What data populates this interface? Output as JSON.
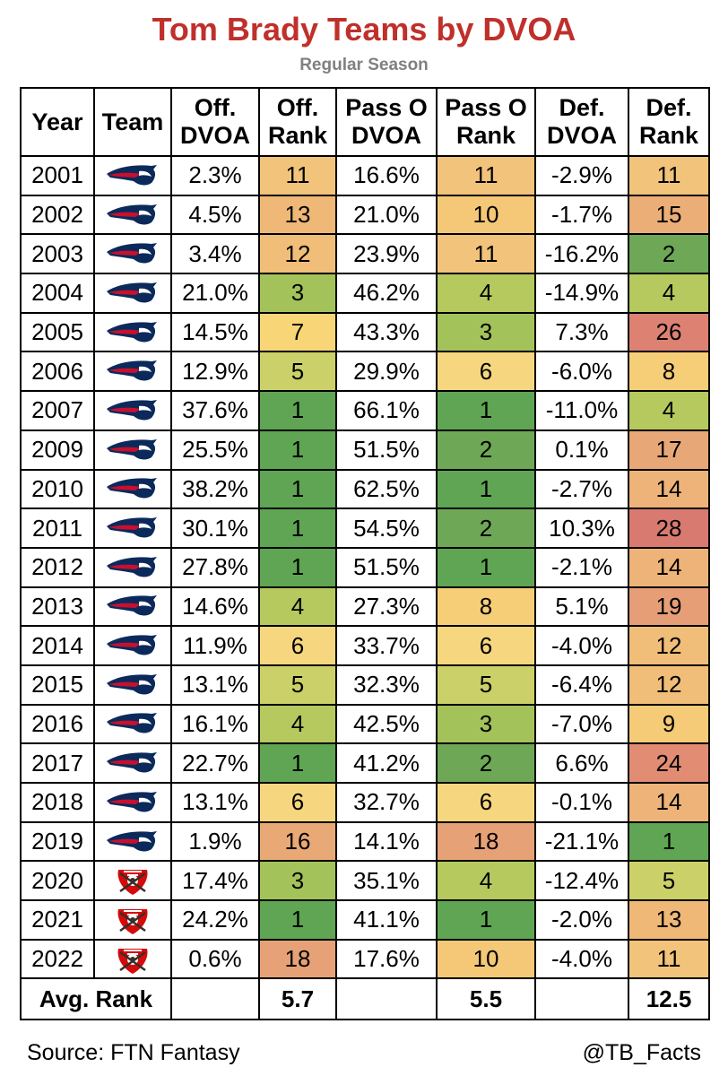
{
  "title": "Tom Brady Teams by DVOA",
  "subtitle": "Regular Season",
  "headers": {
    "year": "Year",
    "team": "Team",
    "off_dvoa": [
      "Off.",
      "DVOA"
    ],
    "off_rank": [
      "Off.",
      "Rank"
    ],
    "pass_dvoa": [
      "Pass O",
      "DVOA"
    ],
    "pass_rank": [
      "Pass O",
      "Rank"
    ],
    "def_dvoa": [
      "Def.",
      "DVOA"
    ],
    "def_rank": [
      "Def.",
      "Rank"
    ]
  },
  "rank_colors": {
    "1": "#5fa553",
    "2": "#6ea856",
    "3": "#a3c35a",
    "4": "#b5c95e",
    "5": "#cbd168",
    "6": "#f6d77f",
    "7": "#f8d677",
    "8": "#f6ce78",
    "9": "#f5cb77",
    "10": "#f4c877",
    "11": "#f2c37a",
    "12": "#f0be78",
    "13": "#efb877",
    "14": "#edb378",
    "15": "#ebae77",
    "16": "#e9a976",
    "17": "#e8a777",
    "18": "#e6a276",
    "19": "#e59e76",
    "24": "#e28c74",
    "26": "#dd8272",
    "28": "#d97a70"
  },
  "chart_data": {
    "type": "table",
    "title": "Tom Brady Teams by DVOA",
    "subtitle": "Regular Season",
    "columns": [
      "Year",
      "Team",
      "Off. DVOA",
      "Off. Rank",
      "Pass O DVOA",
      "Pass O Rank",
      "Def. DVOA",
      "Def. Rank"
    ],
    "rows": [
      {
        "year": "2001",
        "team": "patriots",
        "off_dvoa": "2.3%",
        "off_rank": "11",
        "pass_dvoa": "16.6%",
        "pass_rank": "11",
        "def_dvoa": "-2.9%",
        "def_rank": "11"
      },
      {
        "year": "2002",
        "team": "patriots",
        "off_dvoa": "4.5%",
        "off_rank": "13",
        "pass_dvoa": "21.0%",
        "pass_rank": "10",
        "def_dvoa": "-1.7%",
        "def_rank": "15"
      },
      {
        "year": "2003",
        "team": "patriots",
        "off_dvoa": "3.4%",
        "off_rank": "12",
        "pass_dvoa": "23.9%",
        "pass_rank": "11",
        "def_dvoa": "-16.2%",
        "def_rank": "2"
      },
      {
        "year": "2004",
        "team": "patriots",
        "off_dvoa": "21.0%",
        "off_rank": "3",
        "pass_dvoa": "46.2%",
        "pass_rank": "4",
        "def_dvoa": "-14.9%",
        "def_rank": "4"
      },
      {
        "year": "2005",
        "team": "patriots",
        "off_dvoa": "14.5%",
        "off_rank": "7",
        "pass_dvoa": "43.3%",
        "pass_rank": "3",
        "def_dvoa": "7.3%",
        "def_rank": "26"
      },
      {
        "year": "2006",
        "team": "patriots",
        "off_dvoa": "12.9%",
        "off_rank": "5",
        "pass_dvoa": "29.9%",
        "pass_rank": "6",
        "def_dvoa": "-6.0%",
        "def_rank": "8"
      },
      {
        "year": "2007",
        "team": "patriots",
        "off_dvoa": "37.6%",
        "off_rank": "1",
        "pass_dvoa": "66.1%",
        "pass_rank": "1",
        "def_dvoa": "-11.0%",
        "def_rank": "4"
      },
      {
        "year": "2009",
        "team": "patriots",
        "off_dvoa": "25.5%",
        "off_rank": "1",
        "pass_dvoa": "51.5%",
        "pass_rank": "2",
        "def_dvoa": "0.1%",
        "def_rank": "17"
      },
      {
        "year": "2010",
        "team": "patriots",
        "off_dvoa": "38.2%",
        "off_rank": "1",
        "pass_dvoa": "62.5%",
        "pass_rank": "1",
        "def_dvoa": "-2.7%",
        "def_rank": "14"
      },
      {
        "year": "2011",
        "team": "patriots",
        "off_dvoa": "30.1%",
        "off_rank": "1",
        "pass_dvoa": "54.5%",
        "pass_rank": "2",
        "def_dvoa": "10.3%",
        "def_rank": "28"
      },
      {
        "year": "2012",
        "team": "patriots",
        "off_dvoa": "27.8%",
        "off_rank": "1",
        "pass_dvoa": "51.5%",
        "pass_rank": "1",
        "def_dvoa": "-2.1%",
        "def_rank": "14"
      },
      {
        "year": "2013",
        "team": "patriots",
        "off_dvoa": "14.6%",
        "off_rank": "4",
        "pass_dvoa": "27.3%",
        "pass_rank": "8",
        "def_dvoa": "5.1%",
        "def_rank": "19"
      },
      {
        "year": "2014",
        "team": "patriots",
        "off_dvoa": "11.9%",
        "off_rank": "6",
        "pass_dvoa": "33.7%",
        "pass_rank": "6",
        "def_dvoa": "-4.0%",
        "def_rank": "12"
      },
      {
        "year": "2015",
        "team": "patriots",
        "off_dvoa": "13.1%",
        "off_rank": "5",
        "pass_dvoa": "32.3%",
        "pass_rank": "5",
        "def_dvoa": "-6.4%",
        "def_rank": "12"
      },
      {
        "year": "2016",
        "team": "patriots",
        "off_dvoa": "16.1%",
        "off_rank": "4",
        "pass_dvoa": "42.5%",
        "pass_rank": "3",
        "def_dvoa": "-7.0%",
        "def_rank": "9"
      },
      {
        "year": "2017",
        "team": "patriots",
        "off_dvoa": "22.7%",
        "off_rank": "1",
        "pass_dvoa": "41.2%",
        "pass_rank": "2",
        "def_dvoa": "6.6%",
        "def_rank": "24"
      },
      {
        "year": "2018",
        "team": "patriots",
        "off_dvoa": "13.1%",
        "off_rank": "6",
        "pass_dvoa": "32.7%",
        "pass_rank": "6",
        "def_dvoa": "-0.1%",
        "def_rank": "14"
      },
      {
        "year": "2019",
        "team": "patriots",
        "off_dvoa": "1.9%",
        "off_rank": "16",
        "pass_dvoa": "14.1%",
        "pass_rank": "18",
        "def_dvoa": "-21.1%",
        "def_rank": "1"
      },
      {
        "year": "2020",
        "team": "buccaneers",
        "off_dvoa": "17.4%",
        "off_rank": "3",
        "pass_dvoa": "35.1%",
        "pass_rank": "4",
        "def_dvoa": "-12.4%",
        "def_rank": "5"
      },
      {
        "year": "2021",
        "team": "buccaneers",
        "off_dvoa": "24.2%",
        "off_rank": "1",
        "pass_dvoa": "41.1%",
        "pass_rank": "1",
        "def_dvoa": "-2.0%",
        "def_rank": "13"
      },
      {
        "year": "2022",
        "team": "buccaneers",
        "off_dvoa": "0.6%",
        "off_rank": "18",
        "pass_dvoa": "17.6%",
        "pass_rank": "10",
        "def_dvoa": "-4.0%",
        "def_rank": "11"
      }
    ],
    "average": {
      "label": "Avg. Rank",
      "off_rank": "5.7",
      "pass_rank": "5.5",
      "def_rank": "12.5"
    }
  },
  "footer": {
    "source": "Source: FTN Fantasy",
    "handle": "@TB_Facts"
  }
}
